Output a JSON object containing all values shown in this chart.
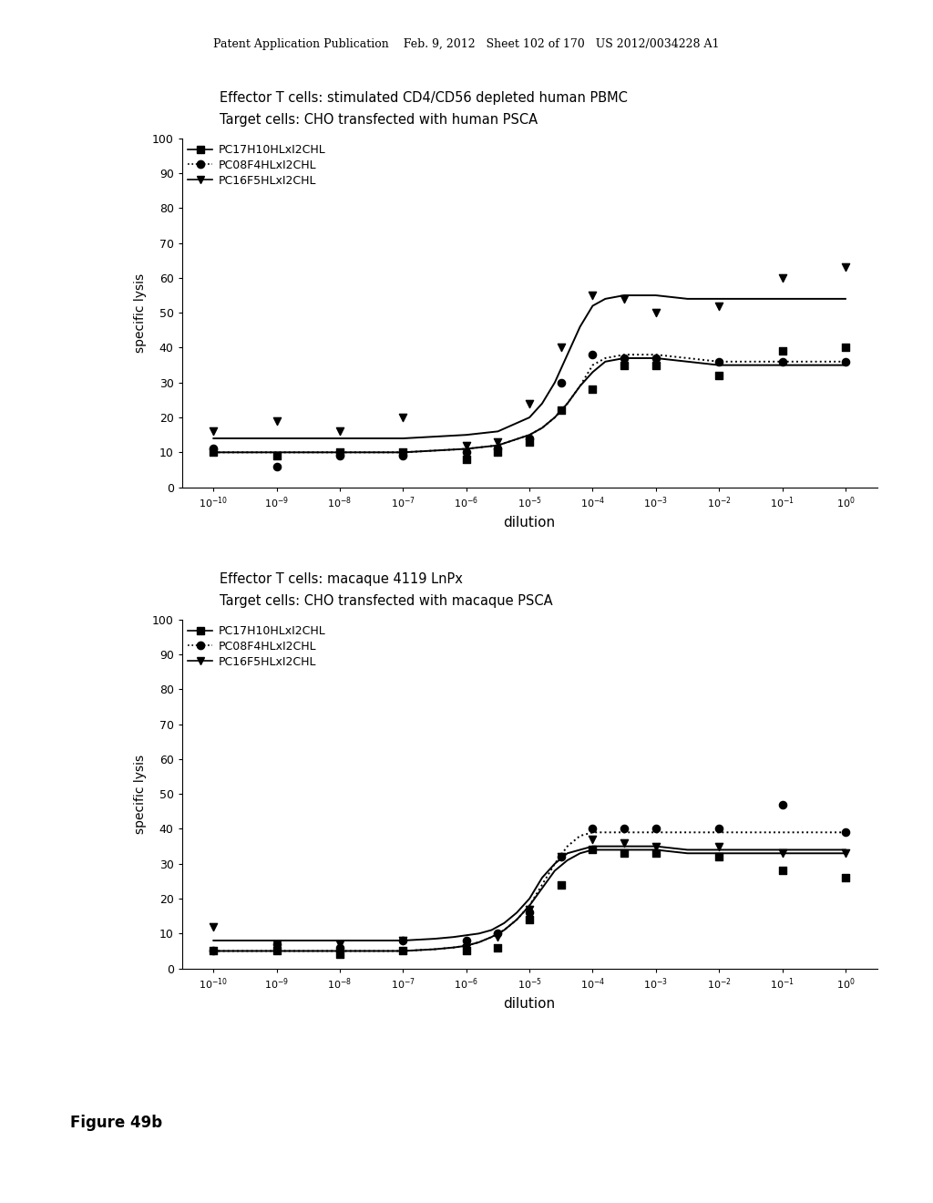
{
  "page_header": "Patent Application Publication    Feb. 9, 2012   Sheet 102 of 170   US 2012/0034228 A1",
  "figure_label": "Figure 49b",
  "panel1": {
    "title1": "Effector T cells: stimulated CD4/CD56 depleted human PBMC",
    "title2": "Target cells: CHO transfected with human PSCA",
    "ylabel": "specific lysis",
    "xlabel": "dilution",
    "ylim": [
      0,
      100
    ],
    "yticks": [
      0,
      10,
      20,
      30,
      40,
      50,
      60,
      70,
      80,
      90,
      100
    ],
    "series": [
      {
        "label": "PC17H10HLxI2CHL",
        "marker": "s",
        "linestyle": "-",
        "curve_x": [
          -10,
          -9.5,
          -9,
          -8.5,
          -8,
          -7.5,
          -7,
          -6.5,
          -6,
          -5.5,
          -5,
          -4.8,
          -4.6,
          -4.4,
          -4.2,
          -4,
          -3.8,
          -3.5,
          -3,
          -2.5,
          -2,
          -1.5,
          -1,
          -0.5,
          0
        ],
        "curve_y": [
          10,
          10,
          10,
          10,
          10,
          10,
          10,
          10.5,
          11,
          12,
          15,
          17,
          20,
          24,
          29,
          33,
          36,
          37,
          37,
          36,
          35,
          35,
          35,
          35,
          35
        ],
        "scatter_x": [
          -10,
          -9,
          -8,
          -7,
          -6,
          -5.5,
          -5,
          -4.5,
          -4,
          -3.5,
          -3,
          -2,
          -1,
          0
        ],
        "scatter_y": [
          10,
          9,
          10,
          10,
          8,
          10,
          13,
          22,
          28,
          35,
          35,
          32,
          39,
          40
        ]
      },
      {
        "label": "PC08F4HLxI2CHL",
        "marker": "o",
        "linestyle": ":",
        "curve_x": [
          -10,
          -9.5,
          -9,
          -8.5,
          -8,
          -7.5,
          -7,
          -6.5,
          -6,
          -5.5,
          -5,
          -4.8,
          -4.6,
          -4.4,
          -4.2,
          -4,
          -3.8,
          -3.5,
          -3,
          -2.5,
          -2,
          -1.5,
          -1,
          -0.5,
          0
        ],
        "curve_y": [
          10,
          10,
          10,
          10,
          10,
          10,
          10,
          10.5,
          11,
          12,
          15,
          17,
          20,
          24,
          29,
          35,
          37,
          38,
          38,
          37,
          36,
          36,
          36,
          36,
          36
        ],
        "scatter_x": [
          -10,
          -9,
          -8,
          -7,
          -6,
          -5.5,
          -5,
          -4.5,
          -4,
          -3.5,
          -3,
          -2,
          -1,
          0
        ],
        "scatter_y": [
          11,
          6,
          9,
          9,
          10,
          11,
          14,
          30,
          38,
          37,
          37,
          36,
          36,
          36
        ]
      },
      {
        "label": "PC16F5HLxI2CHL",
        "marker": "v",
        "linestyle": "-",
        "curve_x": [
          -10,
          -9.5,
          -9,
          -8.5,
          -8,
          -7.5,
          -7,
          -6.5,
          -6,
          -5.5,
          -5,
          -4.8,
          -4.6,
          -4.4,
          -4.2,
          -4,
          -3.8,
          -3.5,
          -3,
          -2.5,
          -2,
          -1.5,
          -1,
          -0.5,
          0
        ],
        "curve_y": [
          14,
          14,
          14,
          14,
          14,
          14,
          14,
          14.5,
          15,
          16,
          20,
          24,
          30,
          38,
          46,
          52,
          54,
          55,
          55,
          54,
          54,
          54,
          54,
          54,
          54
        ],
        "scatter_x": [
          -10,
          -9,
          -8,
          -7,
          -6,
          -5.5,
          -5,
          -4.5,
          -4,
          -3.5,
          -3,
          -2,
          -1,
          0
        ],
        "scatter_y": [
          16,
          19,
          16,
          20,
          12,
          13,
          24,
          40,
          55,
          54,
          50,
          52,
          60,
          63
        ]
      }
    ]
  },
  "panel2": {
    "title1": "Effector T cells: macaque 4119 LnPx",
    "title2": "Target cells: CHO transfected with macaque PSCA",
    "ylabel": "specific lysis",
    "xlabel": "dilution",
    "ylim": [
      0,
      100
    ],
    "yticks": [
      0,
      10,
      20,
      30,
      40,
      50,
      60,
      70,
      80,
      90,
      100
    ],
    "series": [
      {
        "label": "PC17H10HLxI2CHL",
        "marker": "s",
        "linestyle": "-",
        "curve_x": [
          -10,
          -9.5,
          -9,
          -8.5,
          -8,
          -7.5,
          -7,
          -6.5,
          -6.2,
          -6,
          -5.8,
          -5.6,
          -5.4,
          -5.2,
          -5,
          -4.8,
          -4.6,
          -4.4,
          -4.2,
          -4,
          -3.5,
          -3,
          -2.5,
          -2,
          -1.5,
          -1,
          0
        ],
        "curve_y": [
          5,
          5,
          5,
          5,
          5,
          5,
          5,
          5.5,
          6,
          6.5,
          7.5,
          9,
          11,
          14,
          18,
          23,
          28,
          31,
          33,
          34,
          34,
          34,
          33,
          33,
          33,
          33,
          33
        ],
        "scatter_x": [
          -10,
          -9,
          -8,
          -7,
          -6,
          -5.5,
          -5,
          -4.5,
          -4,
          -3.5,
          -3,
          -2,
          -1,
          0
        ],
        "scatter_y": [
          5,
          5,
          4,
          5,
          5,
          6,
          14,
          24,
          34,
          33,
          33,
          32,
          28,
          26
        ]
      },
      {
        "label": "PC08F4HLxI2CHL",
        "marker": "o",
        "linestyle": ":",
        "curve_x": [
          -10,
          -9.5,
          -9,
          -8.5,
          -8,
          -7.5,
          -7,
          -6.5,
          -6.2,
          -6,
          -5.8,
          -5.6,
          -5.4,
          -5.2,
          -5,
          -4.8,
          -4.6,
          -4.4,
          -4.2,
          -4,
          -3.5,
          -3,
          -2.5,
          -2,
          -1.5,
          -1,
          0
        ],
        "curve_y": [
          5,
          5,
          5,
          5,
          5,
          5,
          5,
          5.5,
          6,
          6.5,
          7.5,
          9,
          11,
          14,
          18,
          24,
          30,
          35,
          38,
          39,
          39,
          39,
          39,
          39,
          39,
          39,
          39
        ],
        "scatter_x": [
          -10,
          -9,
          -8,
          -7,
          -6,
          -5.5,
          -5,
          -4.5,
          -4,
          -3.5,
          -3,
          -2,
          -1,
          0
        ],
        "scatter_y": [
          5,
          7,
          6,
          8,
          8,
          10,
          16,
          32,
          40,
          40,
          40,
          40,
          47,
          39
        ]
      },
      {
        "label": "PC16F5HLxI2CHL",
        "marker": "v",
        "linestyle": "-",
        "curve_x": [
          -10,
          -9.5,
          -9,
          -8.5,
          -8,
          -7.5,
          -7,
          -6.5,
          -6.2,
          -6,
          -5.8,
          -5.6,
          -5.4,
          -5.2,
          -5,
          -4.8,
          -4.6,
          -4.4,
          -4.2,
          -4,
          -3.5,
          -3,
          -2.5,
          -2,
          -1.5,
          -1,
          0
        ],
        "curve_y": [
          8,
          8,
          8,
          8,
          8,
          8,
          8,
          8.5,
          9,
          9.5,
          10,
          11,
          13,
          16,
          20,
          26,
          30,
          33,
          34,
          35,
          35,
          35,
          34,
          34,
          34,
          34,
          34
        ],
        "scatter_x": [
          -10,
          -9,
          -8,
          -7,
          -6,
          -5.5,
          -5,
          -4.5,
          -4,
          -3.5,
          -3,
          -2,
          -1,
          0
        ],
        "scatter_y": [
          12,
          7,
          7,
          8,
          6,
          9,
          17,
          32,
          37,
          36,
          35,
          35,
          33,
          33
        ]
      }
    ]
  },
  "xtick_positions": [
    -10,
    -9,
    -8,
    -7,
    -6,
    -5,
    -4,
    -3,
    -2,
    -1,
    0
  ],
  "xtick_labels": [
    "10$^{-10}$",
    "10$^{-9}$",
    "10$^{-8}$",
    "10$^{-7}$",
    "10$^{-6}$",
    "10$^{-5}$",
    "10$^{-4}$",
    "10$^{-3}$",
    "10$^{-2}$",
    "10$^{-1}$",
    "10$^{0}$"
  ],
  "bg_color": "#ffffff",
  "text_color": "#000000"
}
